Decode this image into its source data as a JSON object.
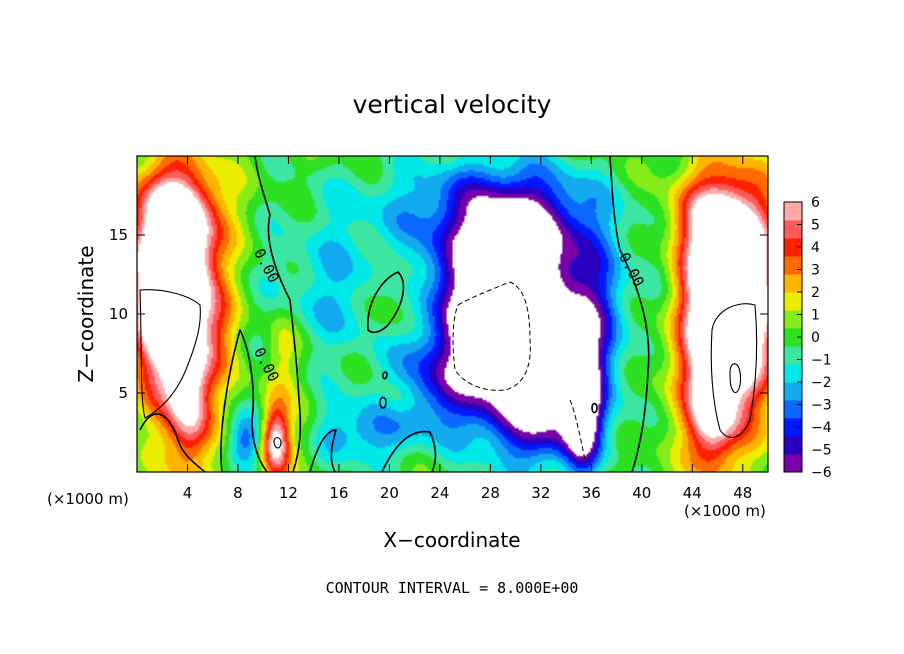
{
  "chart_data": {
    "type": "heatmap",
    "title": "vertical velocity",
    "xlabel": "X−coordinate",
    "ylabel": "Z−coordinate",
    "x_unit": "(×1000 m)",
    "x_unit_right": "(×1000 m)",
    "xlim": [
      0,
      50
    ],
    "ylim": [
      0,
      20
    ],
    "x_ticks": [
      4,
      8,
      12,
      16,
      20,
      24,
      28,
      32,
      36,
      40,
      44,
      48
    ],
    "y_ticks": [
      5,
      10,
      15
    ],
    "colorbar": {
      "min": -6,
      "max": 6,
      "ticks": [
        6,
        5,
        4,
        3,
        2,
        1,
        0,
        -1,
        -2,
        -3,
        -4,
        -5,
        -6
      ],
      "tick_labels": [
        "6",
        "5",
        "4",
        "3",
        "2",
        "1",
        "0",
        "−1",
        "−2",
        "−3",
        "−4",
        "−5",
        "−6"
      ],
      "colors": [
        "#7a00a8",
        "#2a00c0",
        "#0018ff",
        "#0a68ff",
        "#14aaf0",
        "#00e8e8",
        "#3ce6a0",
        "#2ee022",
        "#84ec18",
        "#ecec00",
        "#ffb400",
        "#ff6a00",
        "#ff2000",
        "#ff5a5a",
        "#ffa8a8"
      ]
    },
    "contour_labels": [
      "0.00",
      "0.00",
      "0.00"
    ],
    "features": [
      {
        "x": 2.8,
        "z": 11.5,
        "sx": 2.2,
        "sz": 4.2,
        "amp": 13
      },
      {
        "x": 3.5,
        "z": 16.5,
        "sx": 2.5,
        "sz": 2.0,
        "amp": 3.5
      },
      {
        "x": 4.2,
        "z": 4.0,
        "sx": 1.2,
        "sz": 3.0,
        "amp": 5
      },
      {
        "x": 46.8,
        "z": 10.5,
        "sx": 2.4,
        "sz": 4.5,
        "amp": 13
      },
      {
        "x": 46.0,
        "z": 16.0,
        "sx": 2.8,
        "sz": 2.0,
        "amp": 3.5
      },
      {
        "x": 45.5,
        "z": 3.5,
        "sx": 1.3,
        "sz": 2.5,
        "amp": 5
      },
      {
        "x": 29.5,
        "z": 9.5,
        "sx": 3.8,
        "sz": 4.2,
        "amp": -12
      },
      {
        "x": 30.0,
        "z": 15.5,
        "sx": 4.8,
        "sz": 2.5,
        "amp": -4
      },
      {
        "x": 33.0,
        "z": 3.0,
        "sx": 3.0,
        "sz": 2.0,
        "amp": -4
      },
      {
        "x": 35.3,
        "z": 4.5,
        "sx": 0.9,
        "sz": 2.8,
        "amp": -7
      },
      {
        "x": 36.5,
        "z": 9.0,
        "sx": 1.6,
        "sz": 3.5,
        "amp": -3
      },
      {
        "x": 11.0,
        "z": 2.0,
        "sx": 0.8,
        "sz": 1.6,
        "amp": 7
      },
      {
        "x": 11.5,
        "z": 7.5,
        "sx": 1.0,
        "sz": 2.0,
        "amp": 1.8
      },
      {
        "x": 8.5,
        "z": 2.0,
        "sx": 1.0,
        "sz": 1.2,
        "amp": -3.5
      },
      {
        "x": 6.5,
        "z": 9.0,
        "sx": 1.0,
        "sz": 2.0,
        "amp": 1.2
      },
      {
        "x": 16.0,
        "z": 11.5,
        "sx": 4.5,
        "sz": 3.5,
        "amp": -2.2
      },
      {
        "x": 17.5,
        "z": 2.5,
        "sx": 3.5,
        "sz": 1.5,
        "amp": -3
      },
      {
        "x": 13.5,
        "z": 2.5,
        "sx": 1.0,
        "sz": 1.5,
        "amp": 1.5
      },
      {
        "x": 20.5,
        "z": 11.0,
        "sx": 1.5,
        "sz": 2.0,
        "amp": 2
      },
      {
        "x": 20.5,
        "z": 4.5,
        "sx": 1.0,
        "sz": 1.0,
        "amp": 1.5
      },
      {
        "x": 23.0,
        "z": 5.5,
        "sx": 2.5,
        "sz": 2.0,
        "amp": -2.5
      },
      {
        "x": 41.5,
        "z": 13.0,
        "sx": 2.0,
        "sz": 3.0,
        "amp": -1
      },
      {
        "x": 25.0,
        "z": 17.5,
        "sx": 8.0,
        "sz": 2.0,
        "amp": -1.5
      }
    ]
  },
  "footer": {
    "contour_interval": "CONTOUR INTERVAL = 8.000E+00"
  }
}
